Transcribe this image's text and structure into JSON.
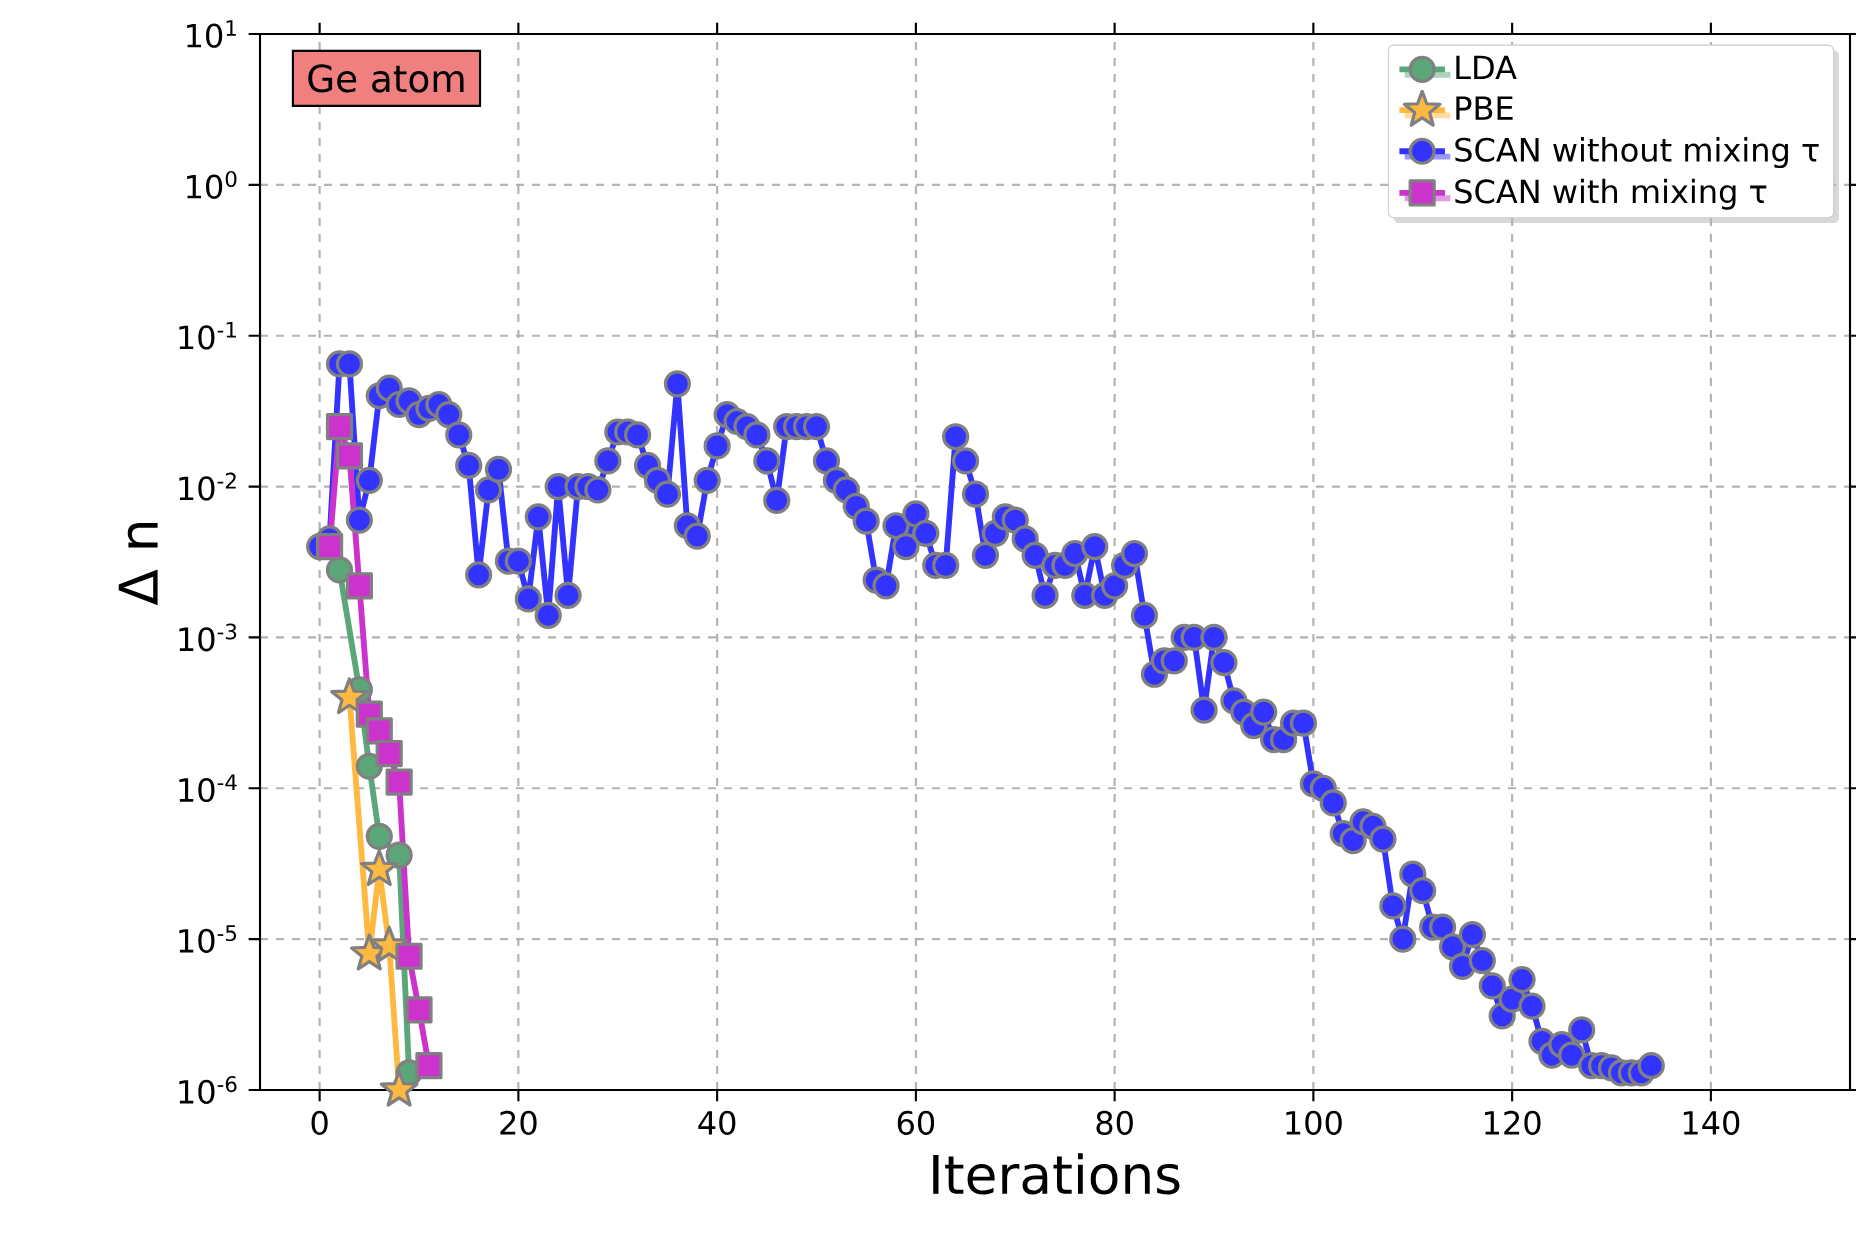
{
  "chart_data": {
    "type": "line",
    "xlabel": "Iterations",
    "ylabel": "Δ n",
    "annotations": [
      "Ge atom"
    ],
    "log": "y",
    "grid": true,
    "legend": "top right",
    "line_style": "solid",
    "xlim": [
      -6,
      154
    ],
    "xticks": [
      0,
      20,
      40,
      60,
      80,
      100,
      120,
      140
    ],
    "ylim": [
      1e-06,
      10
    ],
    "yticks": [
      {
        "value": 1e-06,
        "label": "10$^{-6}$"
      },
      {
        "value": 1e-05,
        "label": "10$^{-5}$"
      },
      {
        "value": 0.0001,
        "label": "10$^{-4}$"
      },
      {
        "value": 0.001,
        "label": "10$^{-3}$"
      },
      {
        "value": 0.01,
        "label": "10$^{-2}$"
      },
      {
        "value": 0.1,
        "label": "10$^{-1}$"
      },
      {
        "value": 1,
        "label": "10$^{0}$"
      },
      {
        "value": 10,
        "label": "10$^{1}$"
      }
    ],
    "series": [
      {
        "name": "LDA",
        "color": "#5ca77a",
        "marker": "circle",
        "x": [
          2,
          4,
          5,
          6,
          8,
          9
        ],
        "values": [
          0.0028,
          0.00045,
          0.00014,
          4.8e-05,
          3.6e-05,
          1.3e-06
        ]
      },
      {
        "name": "PBE",
        "color": "#ffb840",
        "marker": "star",
        "x": [
          3,
          5,
          6,
          7,
          8
        ],
        "values": [
          0.0004,
          8e-06,
          2.9e-05,
          9e-06,
          1e-06
        ]
      },
      {
        "name": "SCAN without mixing τ",
        "color": "#3333ff",
        "marker": "circle",
        "x": [
          0,
          1,
          2,
          3,
          4,
          5,
          6,
          7,
          8,
          9,
          10,
          11,
          12,
          13,
          14,
          15,
          16,
          17,
          18,
          19,
          20,
          21,
          22,
          23,
          24,
          25,
          26,
          27,
          28,
          29,
          30,
          31,
          32,
          33,
          34,
          35,
          36,
          37,
          38,
          39,
          40,
          41,
          42,
          43,
          44,
          45,
          46,
          47,
          48,
          49,
          50,
          51,
          52,
          53,
          54,
          55,
          56,
          57,
          58,
          59,
          60,
          61,
          62,
          63,
          64,
          65,
          66,
          67,
          68,
          69,
          70,
          71,
          72,
          73,
          74,
          75,
          76,
          77,
          78,
          79,
          80,
          81,
          82,
          83,
          84,
          85,
          86,
          87,
          88,
          89,
          90,
          91,
          92,
          93,
          94,
          95,
          96,
          97,
          98,
          99,
          100,
          101,
          102,
          103,
          104,
          105,
          106,
          107,
          108,
          109,
          110,
          111,
          112,
          113,
          114,
          115,
          116,
          117,
          118,
          119,
          120,
          121,
          122,
          123,
          124,
          125,
          126,
          127,
          128,
          129,
          130,
          131,
          132,
          133,
          134
        ],
        "values": [
          0.004,
          0.0045,
          0.065,
          0.065,
          0.006,
          0.011,
          0.04,
          0.045,
          0.035,
          0.037,
          0.03,
          0.033,
          0.035,
          0.03,
          0.022,
          0.0138,
          0.0026,
          0.0095,
          0.013,
          0.0032,
          0.0032,
          0.0018,
          0.0063,
          0.0014,
          0.01,
          0.0019,
          0.01,
          0.01,
          0.0095,
          0.0148,
          0.023,
          0.023,
          0.022,
          0.0138,
          0.011,
          0.0089,
          0.048,
          0.0055,
          0.0047,
          0.011,
          0.0186,
          0.03,
          0.027,
          0.025,
          0.022,
          0.0148,
          0.0081,
          0.025,
          0.025,
          0.025,
          0.025,
          0.0148,
          0.011,
          0.0095,
          0.0074,
          0.0059,
          0.0024,
          0.0022,
          0.0055,
          0.004,
          0.0066,
          0.0049,
          0.003,
          0.003,
          0.0214,
          0.0148,
          0.0089,
          0.0035,
          0.0049,
          0.0063,
          0.006,
          0.0045,
          0.0035,
          0.0019,
          0.003,
          0.003,
          0.0036,
          0.0019,
          0.004,
          0.0019,
          0.0022,
          0.003,
          0.0036,
          0.0014,
          0.00057,
          0.0007,
          0.0007,
          0.001,
          0.001,
          0.00033,
          0.001,
          0.00068,
          0.00038,
          0.00032,
          0.00026,
          0.00032,
          0.00021,
          0.00021,
          0.00027,
          0.00027,
          0.000107,
          0.0001,
          8e-05,
          5e-05,
          4.5e-05,
          6e-05,
          5.6e-05,
          4.6e-05,
          1.66e-05,
          1e-05,
          2.7e-05,
          2.1e-05,
          1.2e-05,
          1.2e-05,
          8.9e-06,
          6.6e-06,
          1.07e-05,
          7.2e-06,
          4.9e-06,
          3.1e-06,
          4e-06,
          5.4e-06,
          3.6e-06,
          2.1e-06,
          1.7e-06,
          2e-06,
          1.7e-06,
          2.5e-06,
          1.45e-06,
          1.45e-06,
          1.4e-06,
          1.3e-06,
          1.3e-06,
          1.3e-06,
          1.45e-06
        ]
      },
      {
        "name": "SCAN with mixing τ",
        "color": "#cc33cc",
        "marker": "square",
        "x": [
          1,
          2,
          3,
          4,
          5,
          6,
          7,
          8,
          9,
          10,
          11
        ],
        "values": [
          0.004,
          0.025,
          0.016,
          0.0022,
          0.00031,
          0.00024,
          0.00017,
          0.00011,
          7.7e-06,
          3.4e-06,
          1.45e-06
        ]
      }
    ]
  }
}
